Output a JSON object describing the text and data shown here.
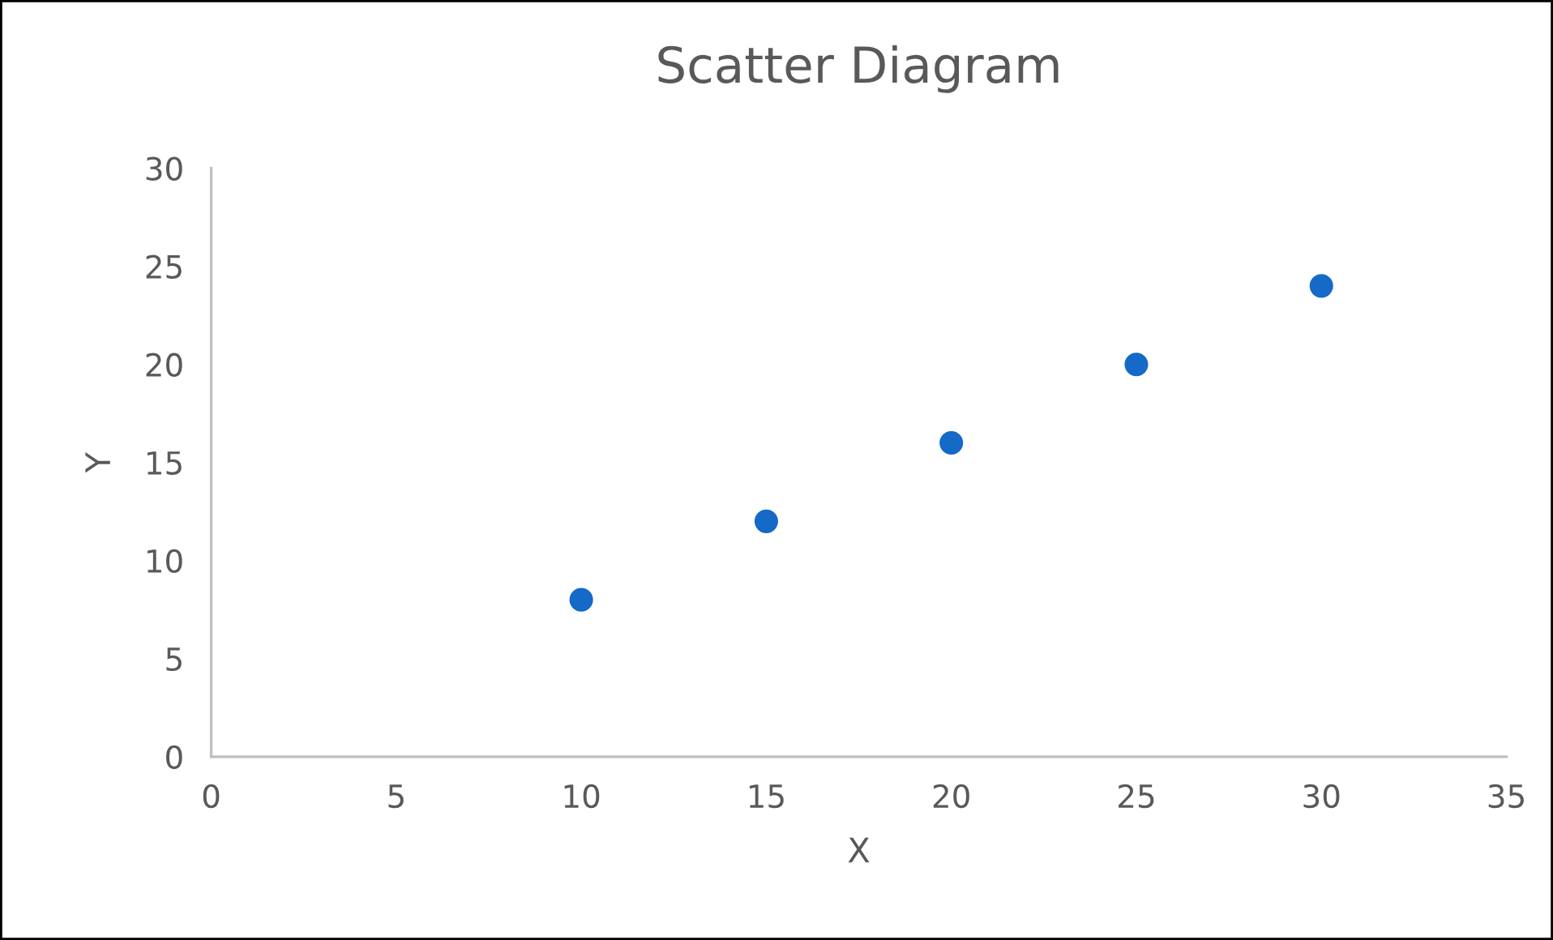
{
  "chart_data": {
    "type": "scatter",
    "title": "Scatter Diagram",
    "xlabel": "X",
    "ylabel": "Y",
    "x": [
      10,
      15,
      20,
      25,
      30
    ],
    "series": [
      {
        "color": "#1569c7",
        "values": [
          8,
          12,
          16,
          20,
          24
        ]
      }
    ],
    "xlim": [
      0,
      35
    ],
    "xticks": [
      0,
      5,
      10,
      15,
      20,
      25,
      30,
      35
    ],
    "ylim": [
      0,
      30
    ],
    "yticks": [
      0,
      5,
      10,
      15,
      20,
      25,
      30
    ],
    "grid": false,
    "marker": "circle"
  }
}
